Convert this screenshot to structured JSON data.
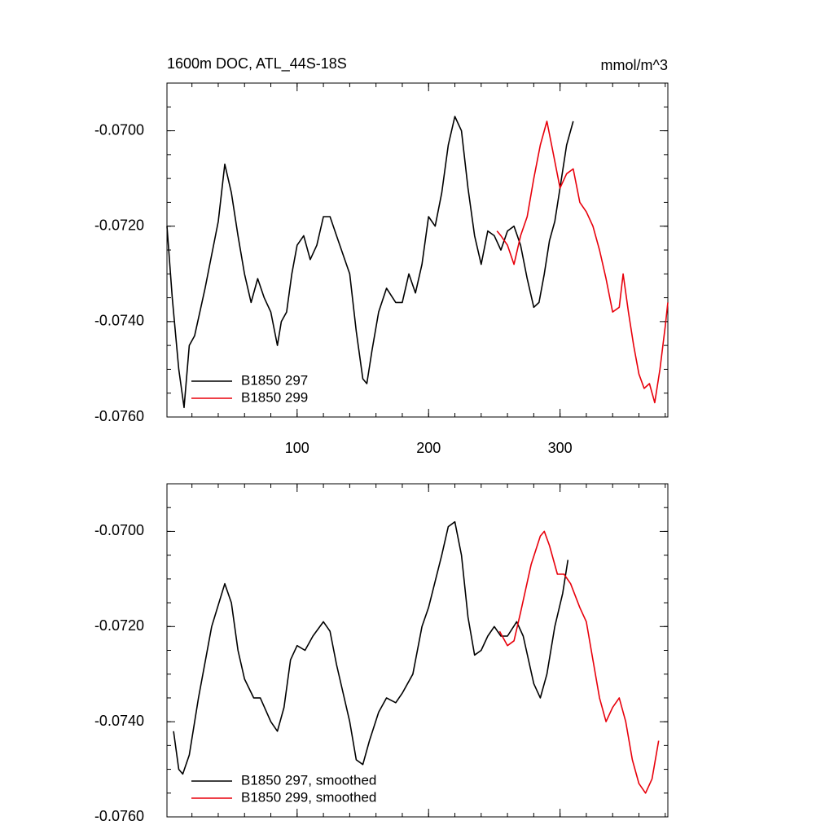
{
  "chart_data": [
    {
      "type": "line",
      "title": "1600m DOC, ATL_44S-18S",
      "units": "mmol/m^3",
      "xlim": [
        1,
        382
      ],
      "xticks": [
        100,
        200,
        300
      ],
      "ylim": [
        -0.076,
        -0.069
      ],
      "yticks": [
        {
          "value": -0.076,
          "label": "-0.0760"
        },
        {
          "value": -0.074,
          "label": "-0.0740"
        },
        {
          "value": -0.072,
          "label": "-0.0720"
        },
        {
          "value": -0.07,
          "label": "-0.0700"
        }
      ],
      "legend": "lower left",
      "series": [
        {
          "name": "B1850 297",
          "color": "#000000",
          "x": [
            1,
            5,
            10,
            14,
            18,
            22,
            26,
            30,
            35,
            40,
            45,
            50,
            55,
            60,
            65,
            70,
            75,
            80,
            85,
            88,
            92,
            96,
            100,
            105,
            110,
            115,
            120,
            125,
            130,
            135,
            140,
            145,
            150,
            153,
            157,
            162,
            168,
            175,
            180,
            185,
            190,
            195,
            200,
            205,
            210,
            215,
            220,
            225,
            230,
            235,
            240,
            245,
            250,
            255,
            260,
            265,
            270,
            275,
            280,
            284,
            288,
            292,
            296,
            300,
            305,
            310
          ],
          "values": [
            -0.072,
            -0.0735,
            -0.075,
            -0.0758,
            -0.0745,
            -0.0743,
            -0.0738,
            -0.0733,
            -0.0726,
            -0.0719,
            -0.0707,
            -0.0713,
            -0.0722,
            -0.073,
            -0.0736,
            -0.0731,
            -0.0735,
            -0.0738,
            -0.0745,
            -0.074,
            -0.0738,
            -0.073,
            -0.0724,
            -0.0722,
            -0.0727,
            -0.0724,
            -0.0718,
            -0.0718,
            -0.0722,
            -0.0726,
            -0.073,
            -0.0742,
            -0.0752,
            -0.0753,
            -0.0746,
            -0.0738,
            -0.0733,
            -0.0736,
            -0.0736,
            -0.073,
            -0.0734,
            -0.0728,
            -0.0718,
            -0.072,
            -0.0713,
            -0.0703,
            -0.0697,
            -0.07,
            -0.0712,
            -0.0722,
            -0.0728,
            -0.0721,
            -0.0722,
            -0.0725,
            -0.0721,
            -0.072,
            -0.0724,
            -0.0731,
            -0.0737,
            -0.0736,
            -0.073,
            -0.0723,
            -0.0719,
            -0.0712,
            -0.0703,
            -0.0698
          ]
        },
        {
          "name": "B1850 299",
          "color": "#e8000b",
          "x": [
            252,
            255,
            260,
            265,
            270,
            275,
            280,
            285,
            290,
            295,
            300,
            305,
            310,
            315,
            320,
            325,
            330,
            335,
            340,
            345,
            348,
            352,
            356,
            360,
            364,
            368,
            372,
            376,
            380,
            382
          ],
          "values": [
            -0.0721,
            -0.0722,
            -0.0724,
            -0.0728,
            -0.0722,
            -0.0718,
            -0.071,
            -0.0703,
            -0.0698,
            -0.0705,
            -0.0712,
            -0.0709,
            -0.0708,
            -0.0715,
            -0.0717,
            -0.072,
            -0.0725,
            -0.0731,
            -0.0738,
            -0.0737,
            -0.073,
            -0.0738,
            -0.0745,
            -0.0751,
            -0.0754,
            -0.0753,
            -0.0757,
            -0.075,
            -0.0741,
            -0.0736
          ]
        }
      ]
    },
    {
      "type": "line",
      "xlim": [
        1,
        382
      ],
      "xticks": [
        100,
        200,
        300
      ],
      "ylim": [
        -0.076,
        -0.069
      ],
      "yticks": [
        {
          "value": -0.076,
          "label": "-0.0760"
        },
        {
          "value": -0.074,
          "label": "-0.0740"
        },
        {
          "value": -0.072,
          "label": "-0.0720"
        },
        {
          "value": -0.07,
          "label": "-0.0700"
        }
      ],
      "legend": "lower left",
      "series": [
        {
          "name": "B1850 297, smoothed",
          "color": "#000000",
          "x": [
            6,
            10,
            13,
            18,
            25,
            35,
            45,
            50,
            55,
            60,
            67,
            72,
            80,
            85,
            90,
            95,
            100,
            106,
            112,
            120,
            125,
            130,
            140,
            145,
            150,
            155,
            162,
            168,
            175,
            180,
            188,
            195,
            200,
            210,
            215,
            220,
            225,
            230,
            235,
            240,
            245,
            250,
            255,
            260,
            267,
            272,
            280,
            285,
            290,
            296,
            302,
            306
          ],
          "values": [
            -0.0742,
            -0.075,
            -0.0751,
            -0.0747,
            -0.0735,
            -0.072,
            -0.0711,
            -0.0715,
            -0.0725,
            -0.0731,
            -0.0735,
            -0.0735,
            -0.074,
            -0.0742,
            -0.0737,
            -0.0727,
            -0.0724,
            -0.0725,
            -0.0722,
            -0.0719,
            -0.0721,
            -0.0728,
            -0.074,
            -0.0748,
            -0.0749,
            -0.0744,
            -0.0738,
            -0.0735,
            -0.0736,
            -0.0734,
            -0.073,
            -0.072,
            -0.0716,
            -0.0705,
            -0.0699,
            -0.0698,
            -0.0705,
            -0.0718,
            -0.0726,
            -0.0725,
            -0.0722,
            -0.072,
            -0.0722,
            -0.0722,
            -0.0719,
            -0.0722,
            -0.0732,
            -0.0735,
            -0.073,
            -0.072,
            -0.0713,
            -0.0706
          ]
        },
        {
          "name": "B1850 299, smoothed",
          "color": "#e8000b",
          "x": [
            254,
            260,
            265,
            270,
            278,
            285,
            288,
            292,
            298,
            303,
            308,
            315,
            320,
            325,
            330,
            335,
            340,
            345,
            350,
            355,
            360,
            365,
            370,
            375
          ],
          "values": [
            -0.0721,
            -0.0724,
            -0.0723,
            -0.0717,
            -0.0707,
            -0.0701,
            -0.07,
            -0.0703,
            -0.0709,
            -0.0709,
            -0.0711,
            -0.0716,
            -0.0719,
            -0.0727,
            -0.0735,
            -0.074,
            -0.0737,
            -0.0735,
            -0.074,
            -0.0748,
            -0.0753,
            -0.0755,
            -0.0752,
            -0.0744
          ]
        }
      ]
    }
  ]
}
